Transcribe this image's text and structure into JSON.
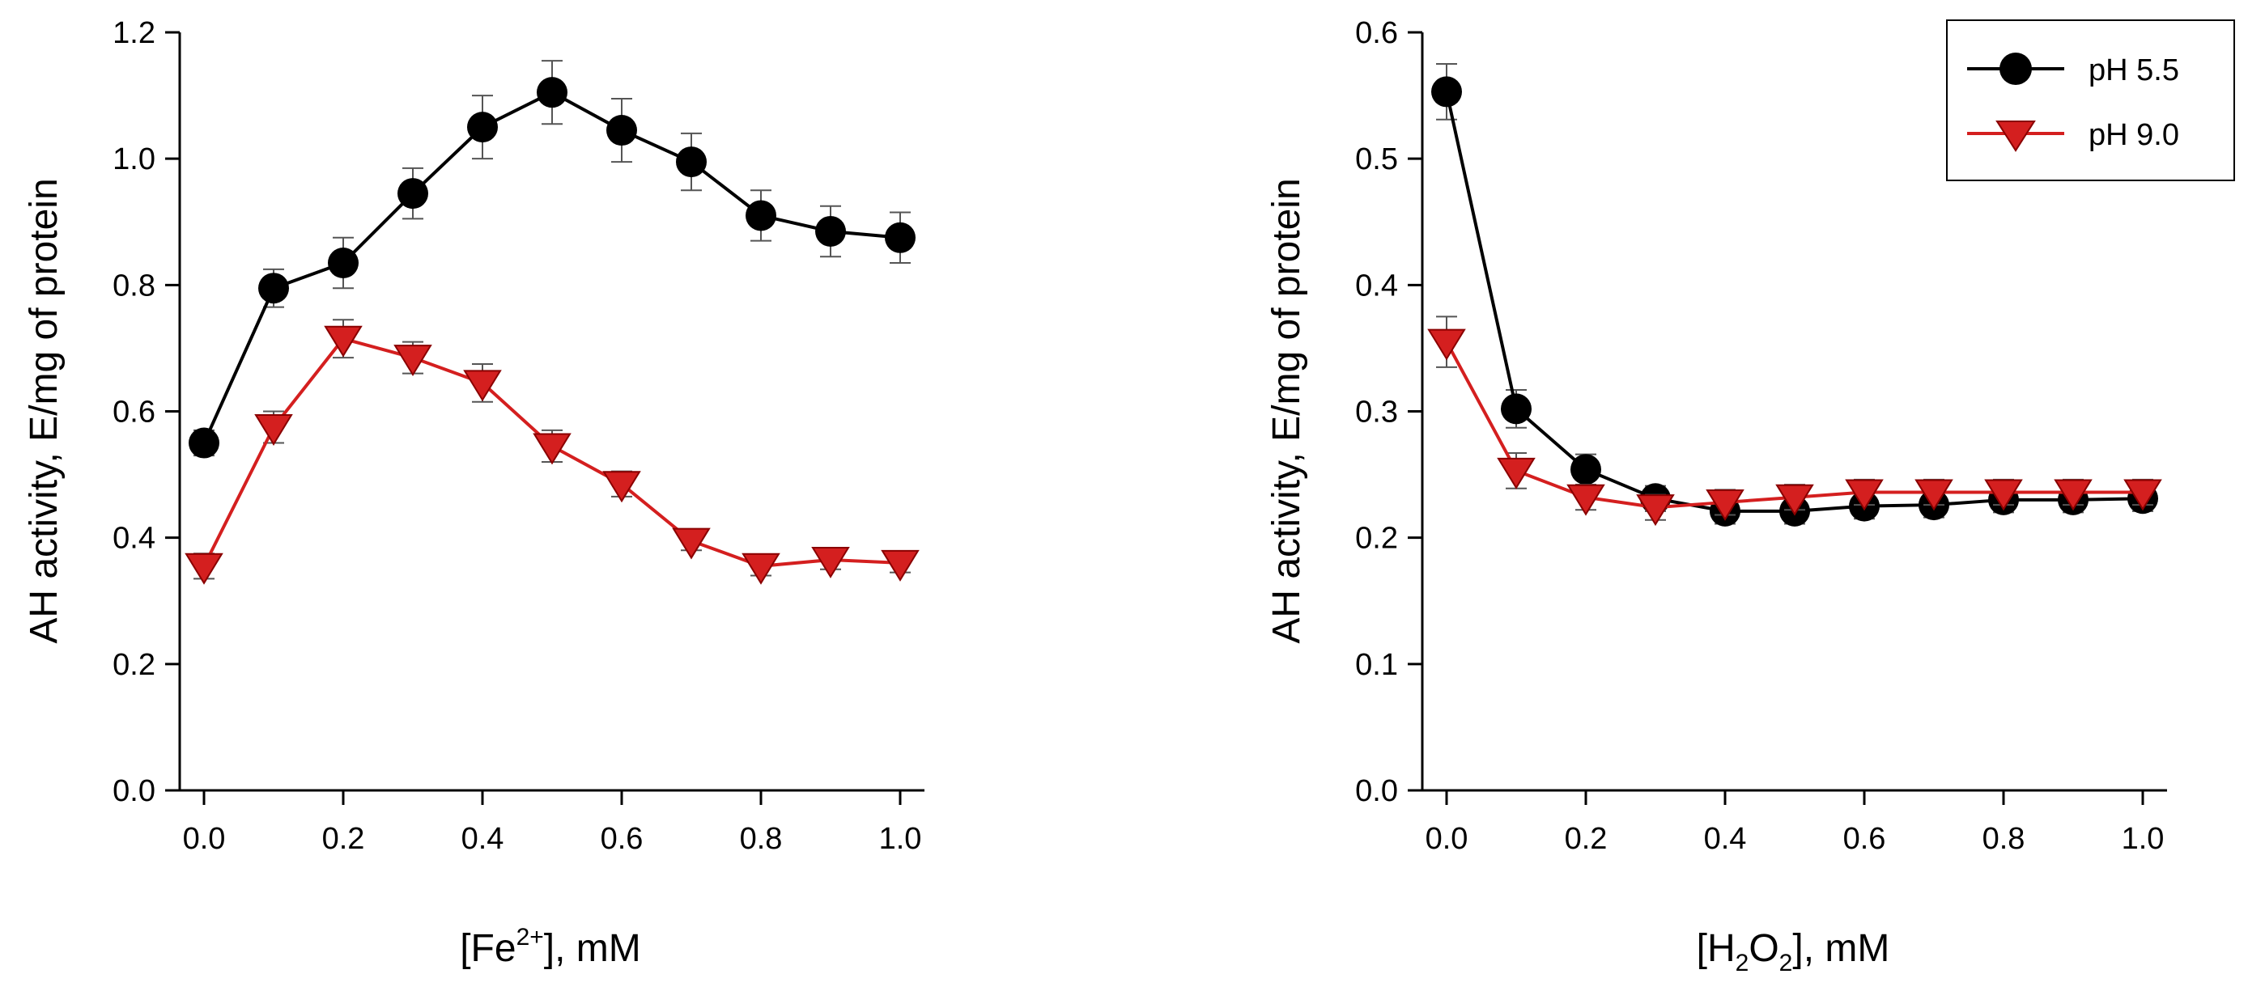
{
  "chart_data": [
    {
      "type": "line",
      "ylabel": "AH activity, E/mg of protein",
      "xlabel_parts": {
        "pre": "[Fe",
        "script": "2+",
        "post": "], mM"
      },
      "xlim": [
        0,
        1.0
      ],
      "ylim": [
        0,
        1.2
      ],
      "x_ticks": [
        "0.0",
        "0.2",
        "0.4",
        "0.6",
        "0.8",
        "1.0"
      ],
      "y_ticks": [
        "0.0",
        "0.2",
        "0.4",
        "0.6",
        "0.8",
        "1.0",
        "1.2"
      ],
      "grid": false,
      "x": [
        0.0,
        0.1,
        0.2,
        0.3,
        0.4,
        0.5,
        0.6,
        0.7,
        0.8,
        0.9,
        1.0
      ],
      "series": [
        {
          "name": "pH 5.5",
          "color": "#000000",
          "marker": "circle",
          "values": [
            0.55,
            0.795,
            0.835,
            0.945,
            1.05,
            1.105,
            1.045,
            0.995,
            0.91,
            0.885,
            0.875
          ],
          "errors": [
            0.02,
            0.03,
            0.04,
            0.04,
            0.05,
            0.05,
            0.05,
            0.045,
            0.04,
            0.04,
            0.04
          ]
        },
        {
          "name": "pH 9.0",
          "color": "#d41f1f",
          "marker": "triangle-down",
          "values": [
            0.355,
            0.575,
            0.715,
            0.685,
            0.645,
            0.545,
            0.485,
            0.395,
            0.355,
            0.365,
            0.36
          ],
          "errors": [
            0.02,
            0.025,
            0.03,
            0.025,
            0.03,
            0.025,
            0.02,
            0.015,
            0.015,
            0.015,
            0.015
          ]
        }
      ]
    },
    {
      "type": "line",
      "ylabel": "AH activity, E/mg of protein",
      "xlabel_parts": {
        "pre": "[H",
        "script": "2",
        "mid": "O",
        "script2": "2",
        "post": "], mM"
      },
      "xlim": [
        0,
        1.0
      ],
      "ylim": [
        0,
        0.6
      ],
      "x_ticks": [
        "0.0",
        "0.2",
        "0.4",
        "0.6",
        "0.8",
        "1.0"
      ],
      "y_ticks": [
        "0.0",
        "0.1",
        "0.2",
        "0.3",
        "0.4",
        "0.5",
        "0.6"
      ],
      "grid": false,
      "legend_position": "top-right",
      "x": [
        0.0,
        0.1,
        0.2,
        0.3,
        0.4,
        0.5,
        0.6,
        0.7,
        0.8,
        0.9,
        1.0
      ],
      "series": [
        {
          "name": "pH 5.5",
          "color": "#000000",
          "marker": "circle",
          "values": [
            0.553,
            0.302,
            0.254,
            0.231,
            0.221,
            0.221,
            0.225,
            0.226,
            0.23,
            0.23,
            0.231
          ],
          "errors": [
            0.022,
            0.015,
            0.012,
            0.01,
            0.01,
            0.01,
            0.01,
            0.01,
            0.01,
            0.01,
            0.01
          ]
        },
        {
          "name": "pH 9.0",
          "color": "#d41f1f",
          "marker": "triangle-down",
          "values": [
            0.355,
            0.253,
            0.232,
            0.224,
            0.228,
            0.232,
            0.236,
            0.236,
            0.236,
            0.236,
            0.236
          ],
          "errors": [
            0.02,
            0.014,
            0.01,
            0.01,
            0.01,
            0.01,
            0.01,
            0.01,
            0.01,
            0.01,
            0.01
          ]
        }
      ]
    }
  ]
}
